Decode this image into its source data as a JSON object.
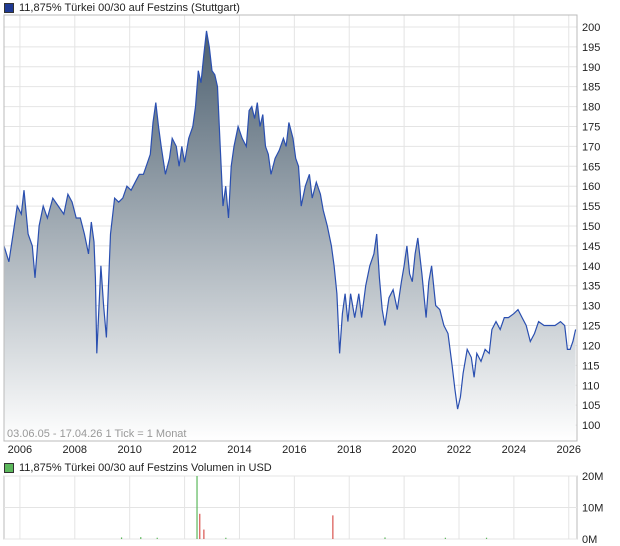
{
  "price_legend": {
    "label": "11,875% Türkei 00/30 auf Festzins (Stuttgart)",
    "color": "#1f3a93"
  },
  "volume_legend": {
    "label": "11,875% Türkei 00/30 auf Festzins Volumen in USD",
    "color": "#5cb85c"
  },
  "info_text": "03.06.05 - 17.04.26   1 Tick = 1 Monat",
  "chart_data": [
    {
      "type": "area",
      "title": "11,875% Türkei 00/30 auf Festzins (Stuttgart)",
      "line_color": "#2a4fb0",
      "fill_top_color": "#4d6070",
      "fill_bottom_color": "#ffffff",
      "ylim": [
        96,
        203
      ],
      "xlim": [
        2005.42,
        2026.3
      ],
      "y_ticks": [
        100,
        105,
        110,
        115,
        120,
        125,
        130,
        135,
        140,
        145,
        150,
        155,
        160,
        165,
        170,
        175,
        180,
        185,
        190,
        195,
        200
      ],
      "x_ticks": [
        2006,
        2008,
        2010,
        2012,
        2014,
        2016,
        2018,
        2020,
        2022,
        2024,
        2026
      ],
      "grid": true,
      "points": [
        [
          2005.42,
          145
        ],
        [
          2005.6,
          141
        ],
        [
          2005.75,
          148
        ],
        [
          2005.9,
          155
        ],
        [
          2006.05,
          153
        ],
        [
          2006.15,
          159
        ],
        [
          2006.3,
          148
        ],
        [
          2006.45,
          145
        ],
        [
          2006.55,
          137
        ],
        [
          2006.7,
          150
        ],
        [
          2006.85,
          155
        ],
        [
          2007.0,
          152
        ],
        [
          2007.2,
          157
        ],
        [
          2007.4,
          155
        ],
        [
          2007.6,
          153
        ],
        [
          2007.75,
          158
        ],
        [
          2007.9,
          156
        ],
        [
          2008.05,
          152
        ],
        [
          2008.2,
          152
        ],
        [
          2008.35,
          148
        ],
        [
          2008.5,
          143
        ],
        [
          2008.6,
          151
        ],
        [
          2008.7,
          146
        ],
        [
          2008.75,
          137
        ],
        [
          2008.8,
          118
        ],
        [
          2008.85,
          125
        ],
        [
          2008.95,
          140
        ],
        [
          2009.05,
          130
        ],
        [
          2009.15,
          122
        ],
        [
          2009.3,
          148
        ],
        [
          2009.45,
          157
        ],
        [
          2009.6,
          156
        ],
        [
          2009.75,
          157
        ],
        [
          2009.9,
          160
        ],
        [
          2010.05,
          159
        ],
        [
          2010.2,
          161
        ],
        [
          2010.35,
          163
        ],
        [
          2010.5,
          163
        ],
        [
          2010.6,
          165
        ],
        [
          2010.75,
          168
        ],
        [
          2010.85,
          176
        ],
        [
          2010.95,
          181
        ],
        [
          2011.05,
          175
        ],
        [
          2011.15,
          170
        ],
        [
          2011.3,
          163
        ],
        [
          2011.45,
          167
        ],
        [
          2011.55,
          172
        ],
        [
          2011.7,
          170
        ],
        [
          2011.8,
          165
        ],
        [
          2011.9,
          170
        ],
        [
          2012.0,
          166
        ],
        [
          2012.15,
          172
        ],
        [
          2012.3,
          175
        ],
        [
          2012.4,
          180
        ],
        [
          2012.5,
          189
        ],
        [
          2012.6,
          186
        ],
        [
          2012.7,
          193
        ],
        [
          2012.8,
          199
        ],
        [
          2012.9,
          195
        ],
        [
          2013.0,
          189
        ],
        [
          2013.1,
          188
        ],
        [
          2013.2,
          185
        ],
        [
          2013.3,
          170
        ],
        [
          2013.4,
          155
        ],
        [
          2013.5,
          160
        ],
        [
          2013.6,
          152
        ],
        [
          2013.7,
          165
        ],
        [
          2013.8,
          170
        ],
        [
          2013.95,
          175
        ],
        [
          2014.1,
          172
        ],
        [
          2014.25,
          170
        ],
        [
          2014.35,
          179
        ],
        [
          2014.45,
          180
        ],
        [
          2014.55,
          177
        ],
        [
          2014.65,
          181
        ],
        [
          2014.75,
          175
        ],
        [
          2014.85,
          178
        ],
        [
          2014.95,
          170
        ],
        [
          2015.05,
          168
        ],
        [
          2015.15,
          163
        ],
        [
          2015.3,
          167
        ],
        [
          2015.45,
          169
        ],
        [
          2015.6,
          172
        ],
        [
          2015.7,
          170
        ],
        [
          2015.8,
          176
        ],
        [
          2015.95,
          172
        ],
        [
          2016.05,
          167
        ],
        [
          2016.15,
          165
        ],
        [
          2016.25,
          155
        ],
        [
          2016.4,
          160
        ],
        [
          2016.55,
          163
        ],
        [
          2016.65,
          157
        ],
        [
          2016.8,
          161
        ],
        [
          2016.95,
          158
        ],
        [
          2017.05,
          154
        ],
        [
          2017.2,
          150
        ],
        [
          2017.35,
          145
        ],
        [
          2017.45,
          140
        ],
        [
          2017.55,
          133
        ],
        [
          2017.65,
          118
        ],
        [
          2017.75,
          128
        ],
        [
          2017.85,
          133
        ],
        [
          2017.95,
          126
        ],
        [
          2018.05,
          133
        ],
        [
          2018.2,
          127
        ],
        [
          2018.35,
          133
        ],
        [
          2018.45,
          127
        ],
        [
          2018.6,
          135
        ],
        [
          2018.75,
          140
        ],
        [
          2018.9,
          143
        ],
        [
          2019.0,
          148
        ],
        [
          2019.1,
          137
        ],
        [
          2019.2,
          129
        ],
        [
          2019.3,
          125
        ],
        [
          2019.45,
          132
        ],
        [
          2019.6,
          134
        ],
        [
          2019.75,
          129
        ],
        [
          2019.9,
          136
        ],
        [
          2020.0,
          140
        ],
        [
          2020.1,
          145
        ],
        [
          2020.2,
          138
        ],
        [
          2020.3,
          136
        ],
        [
          2020.4,
          143
        ],
        [
          2020.5,
          147
        ],
        [
          2020.65,
          138
        ],
        [
          2020.8,
          127
        ],
        [
          2020.9,
          136
        ],
        [
          2021.0,
          140
        ],
        [
          2021.15,
          130
        ],
        [
          2021.3,
          129
        ],
        [
          2021.45,
          125
        ],
        [
          2021.6,
          123
        ],
        [
          2021.75,
          115
        ],
        [
          2021.85,
          109
        ],
        [
          2021.95,
          104
        ],
        [
          2022.05,
          107
        ],
        [
          2022.15,
          113
        ],
        [
          2022.3,
          119
        ],
        [
          2022.45,
          117
        ],
        [
          2022.55,
          112
        ],
        [
          2022.65,
          118
        ],
        [
          2022.8,
          116
        ],
        [
          2022.95,
          119
        ],
        [
          2023.1,
          118
        ],
        [
          2023.2,
          124
        ],
        [
          2023.35,
          126
        ],
        [
          2023.5,
          124
        ],
        [
          2023.65,
          127
        ],
        [
          2023.8,
          127
        ],
        [
          2024.0,
          128
        ],
        [
          2024.15,
          129
        ],
        [
          2024.3,
          127
        ],
        [
          2024.45,
          125
        ],
        [
          2024.6,
          121
        ],
        [
          2024.75,
          123
        ],
        [
          2024.9,
          126
        ],
        [
          2025.1,
          125
        ],
        [
          2025.3,
          125
        ],
        [
          2025.5,
          125
        ],
        [
          2025.7,
          126
        ],
        [
          2025.85,
          125
        ],
        [
          2025.95,
          119
        ],
        [
          2026.05,
          119
        ],
        [
          2026.15,
          121
        ],
        [
          2026.25,
          124
        ]
      ]
    },
    {
      "type": "bar",
      "title": "11,875% Türkei 00/30 auf Festzins Volumen in USD",
      "ylim": [
        0,
        20
      ],
      "y_ticks": [
        0,
        10,
        20
      ],
      "y_tick_labels": [
        "0M",
        "10M",
        "20M"
      ],
      "x_ticks": [
        2006,
        2008,
        2010,
        2012,
        2014,
        2016,
        2018,
        2020,
        2022,
        2024,
        2026
      ],
      "grid": true,
      "bars": [
        {
          "x": 2009.7,
          "value": 0.5,
          "color": "#5cb85c"
        },
        {
          "x": 2010.4,
          "value": 0.6,
          "color": "#5cb85c"
        },
        {
          "x": 2011.0,
          "value": 0.4,
          "color": "#5cb85c"
        },
        {
          "x": 2012.45,
          "value": 20,
          "color": "#5cb85c"
        },
        {
          "x": 2012.55,
          "value": 8,
          "color": "#d9534f"
        },
        {
          "x": 2012.7,
          "value": 3,
          "color": "#d9534f"
        },
        {
          "x": 2013.5,
          "value": 0.4,
          "color": "#5cb85c"
        },
        {
          "x": 2017.4,
          "value": 7.5,
          "color": "#d9534f"
        },
        {
          "x": 2019.3,
          "value": 0.5,
          "color": "#5cb85c"
        },
        {
          "x": 2021.5,
          "value": 0.4,
          "color": "#5cb85c"
        },
        {
          "x": 2023.0,
          "value": 0.4,
          "color": "#5cb85c"
        }
      ]
    }
  ]
}
